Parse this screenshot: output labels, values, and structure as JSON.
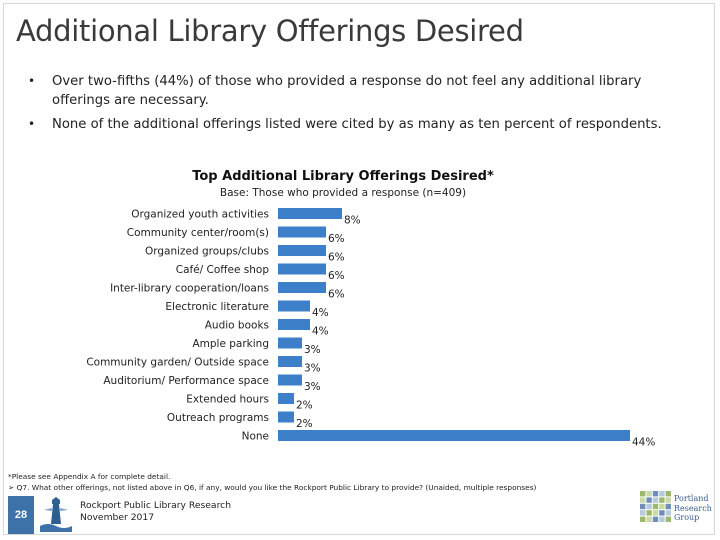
{
  "page": {
    "title": "Additional Library Offerings Desired",
    "bullets": [
      "Over two-fifths (44%) of those who provided a response do not feel any additional library offerings are necessary.",
      "None of the additional offerings listed were cited by as many as ten percent of respondents."
    ],
    "bullet_char": "•"
  },
  "chart_data": {
    "type": "bar",
    "orientation": "horizontal",
    "title": "Top Additional Library Offerings Desired*",
    "subtitle": "Base: Those who provided a response (n=409)",
    "categories": [
      "Organized youth activities",
      "Community center/room(s)",
      "Organized groups/clubs",
      "Café/ Coffee shop",
      "Inter-library cooperation/loans",
      "Electronic literature",
      "Audio books",
      "Ample parking",
      "Community garden/ Outside space",
      "Auditorium/ Performance space",
      "Extended hours",
      "Outreach programs",
      "None"
    ],
    "values": [
      8,
      6,
      6,
      6,
      6,
      4,
      4,
      3,
      3,
      3,
      2,
      2,
      44
    ],
    "value_labels": [
      "8%",
      "6%",
      "6%",
      "6%",
      "6%",
      "4%",
      "4%",
      "3%",
      "3%",
      "3%",
      "2%",
      "2%",
      "44%"
    ],
    "unit": "%",
    "bar_color": "#3d7fc9",
    "grid": false,
    "legend": "none"
  },
  "footnote": {
    "line1": "*Please see Appendix A for complete detail.",
    "line2_marker": "➢",
    "line2": "Q7. What other offerings, not listed above in Q6, if any, would you like the Rockport Public Library to provide? (Unaided, multiple responses)"
  },
  "footer": {
    "page_number": "28",
    "org_name": "Rockport Public Library Research",
    "date": "November 2017",
    "logo_text": [
      "Portland",
      "Research",
      "Group"
    ],
    "accent_color": "#3d72a8"
  }
}
